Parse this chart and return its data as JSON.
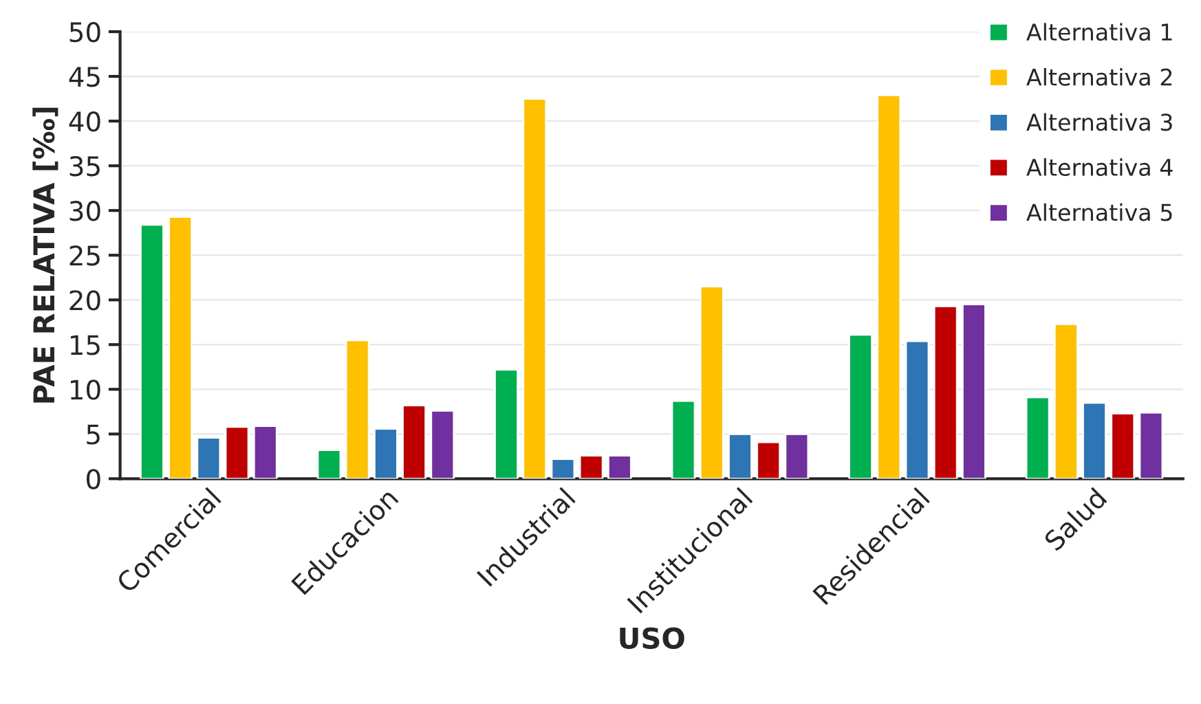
{
  "chart_data": {
    "type": "bar",
    "xlabel": "USO",
    "ylabel": "PAE RELATIVA [‰]",
    "categories": [
      "Comercial",
      "Educacion",
      "Industrial",
      "Institucional",
      "Residencial",
      "Salud"
    ],
    "series": [
      {
        "name": "Alternativa 1",
        "color": "#00b050",
        "values": [
          28.4,
          3.2,
          12.2,
          8.7,
          16.1,
          9.1
        ]
      },
      {
        "name": "Alternativa 2",
        "color": "#ffc000",
        "values": [
          29.3,
          15.5,
          42.5,
          21.5,
          42.9,
          17.3
        ]
      },
      {
        "name": "Alternativa 3",
        "color": "#2e75b6",
        "values": [
          4.6,
          5.6,
          2.2,
          5.0,
          15.4,
          8.5
        ]
      },
      {
        "name": "Alternativa 4",
        "color": "#c00000",
        "values": [
          5.8,
          8.2,
          2.6,
          4.1,
          19.3,
          7.3
        ]
      },
      {
        "name": "Alternativa 5",
        "color": "#7030a0",
        "values": [
          5.9,
          7.6,
          2.6,
          5.0,
          19.5,
          7.4
        ]
      }
    ],
    "ylim": [
      0,
      50
    ],
    "yticks": [
      0,
      5,
      10,
      15,
      20,
      25,
      30,
      35,
      40,
      45,
      50
    ],
    "grid": "y",
    "legend": "top right"
  }
}
